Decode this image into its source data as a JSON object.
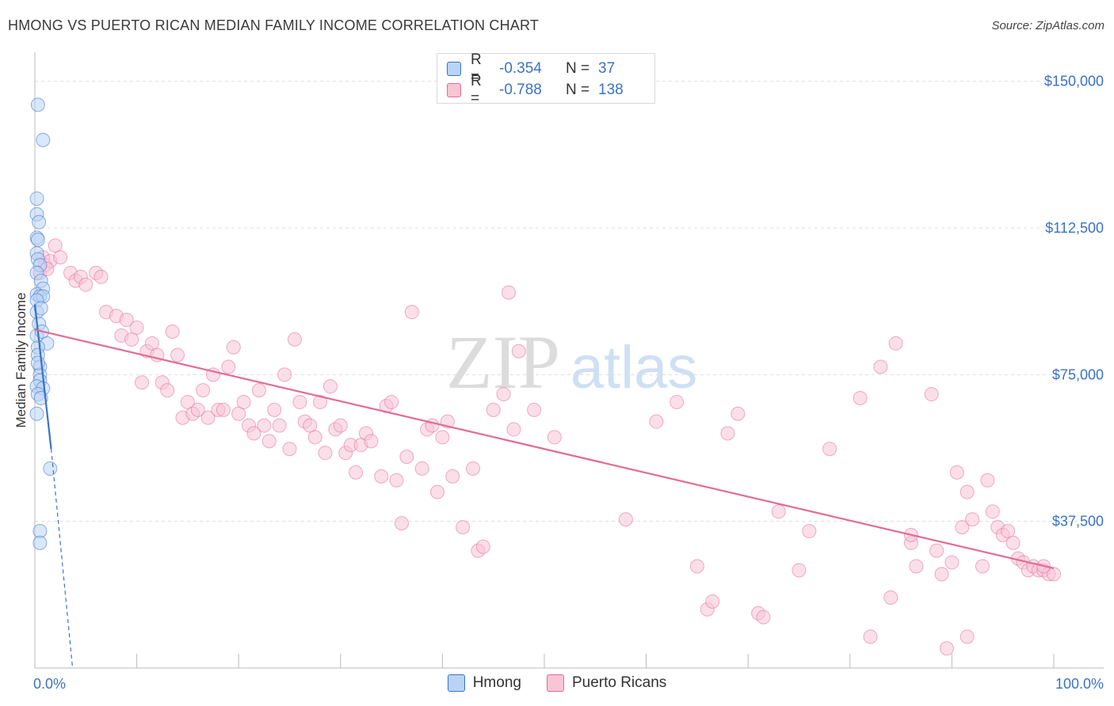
{
  "title": "HMONG VS PUERTO RICAN MEDIAN FAMILY INCOME CORRELATION CHART",
  "source": "Source: ZipAtlas.com",
  "watermark": {
    "zip": "ZIP",
    "atlas": "atlas"
  },
  "legend": {
    "r_label": "R =",
    "n_label": "N =",
    "series": [
      {
        "name": "Hmong",
        "r": "-0.354",
        "n": "37",
        "color": "#3b73c4",
        "fill": "#b9d4f5"
      },
      {
        "name": "Puerto Ricans",
        "r": "-0.788",
        "n": "138",
        "color": "#e36b96",
        "fill": "#f8c5d5"
      }
    ]
  },
  "chart_data": {
    "type": "scatter",
    "ylabel": "Median Family Income",
    "xlabel": "",
    "xlim": [
      0,
      100
    ],
    "ylim": [
      0,
      155000
    ],
    "y_ticks": [
      {
        "value": 37500,
        "label": "$37,500"
      },
      {
        "value": 75000,
        "label": "$75,000"
      },
      {
        "value": 112500,
        "label": "$112,500"
      },
      {
        "value": 150000,
        "label": "$150,000"
      }
    ],
    "x_tick_labels": {
      "min": "0.0%",
      "max": "100.0%"
    },
    "series": [
      {
        "name": "Hmong",
        "color": "#3b73c4",
        "fill": "#b9d4f5",
        "trend": {
          "x0": 0,
          "y0": 93000,
          "x1": 1.6,
          "y1": 56000,
          "dashed_to_x": 3.7,
          "dashed_to_y": 0
        },
        "points": [
          [
            0.3,
            144000
          ],
          [
            0.8,
            135000
          ],
          [
            0.2,
            120000
          ],
          [
            0.2,
            116000
          ],
          [
            0.4,
            114000
          ],
          [
            0.2,
            110000
          ],
          [
            0.3,
            109500
          ],
          [
            0.2,
            106000
          ],
          [
            0.3,
            104500
          ],
          [
            0.5,
            103000
          ],
          [
            0.2,
            101000
          ],
          [
            0.6,
            99000
          ],
          [
            0.8,
            97000
          ],
          [
            0.2,
            95500
          ],
          [
            0.5,
            95000
          ],
          [
            0.8,
            95000
          ],
          [
            0.2,
            94000
          ],
          [
            0.2,
            91000
          ],
          [
            1.2,
            83000
          ],
          [
            0.3,
            82000
          ],
          [
            0.3,
            80000
          ],
          [
            0.5,
            77000
          ],
          [
            0.5,
            75000
          ],
          [
            0.5,
            73500
          ],
          [
            0.2,
            72000
          ],
          [
            0.8,
            71500
          ],
          [
            0.3,
            70000
          ],
          [
            0.6,
            69000
          ],
          [
            0.2,
            65000
          ],
          [
            1.5,
            51000
          ],
          [
            0.5,
            35000
          ],
          [
            0.5,
            32000
          ],
          [
            0.2,
            85000
          ],
          [
            0.4,
            88000
          ],
          [
            0.7,
            86000
          ],
          [
            0.3,
            78000
          ],
          [
            0.6,
            92000
          ]
        ]
      },
      {
        "name": "Puerto Ricans",
        "color": "#e36b96",
        "fill": "#f8c5d5",
        "trend": {
          "x0": 0,
          "y0": 86500,
          "x1": 100,
          "y1": 25500
        },
        "points": [
          [
            0.5,
            101000
          ],
          [
            0.8,
            105000
          ],
          [
            1.0,
            103000
          ],
          [
            1.5,
            104000
          ],
          [
            2.0,
            108000
          ],
          [
            1.2,
            102000
          ],
          [
            2.5,
            105000
          ],
          [
            3.5,
            101000
          ],
          [
            4.0,
            99000
          ],
          [
            4.5,
            100000
          ],
          [
            5.0,
            98000
          ],
          [
            6.0,
            101000
          ],
          [
            6.5,
            100000
          ],
          [
            7.0,
            91000
          ],
          [
            8.0,
            90000
          ],
          [
            8.5,
            85000
          ],
          [
            9.0,
            89000
          ],
          [
            9.5,
            84000
          ],
          [
            10,
            87000
          ],
          [
            10.5,
            73000
          ],
          [
            11,
            81000
          ],
          [
            11.5,
            83000
          ],
          [
            12,
            80000
          ],
          [
            12.5,
            73000
          ],
          [
            13,
            71000
          ],
          [
            13.5,
            86000
          ],
          [
            14,
            80000
          ],
          [
            14.5,
            64000
          ],
          [
            15,
            68000
          ],
          [
            15.5,
            65000
          ],
          [
            16,
            66000
          ],
          [
            16.5,
            71000
          ],
          [
            17,
            64000
          ],
          [
            17.5,
            75000
          ],
          [
            18,
            66000
          ],
          [
            18.5,
            66000
          ],
          [
            19,
            77000
          ],
          [
            19.5,
            82000
          ],
          [
            20,
            65000
          ],
          [
            20.5,
            68000
          ],
          [
            21,
            62000
          ],
          [
            21.5,
            60000
          ],
          [
            22,
            71000
          ],
          [
            22.5,
            62000
          ],
          [
            23,
            58000
          ],
          [
            23.5,
            66000
          ],
          [
            24,
            62000
          ],
          [
            24.5,
            75000
          ],
          [
            25,
            56000
          ],
          [
            25.5,
            84000
          ],
          [
            26,
            68000
          ],
          [
            26.5,
            63000
          ],
          [
            27,
            62000
          ],
          [
            27.5,
            59000
          ],
          [
            28,
            68000
          ],
          [
            28.5,
            55000
          ],
          [
            29,
            72000
          ],
          [
            29.5,
            61000
          ],
          [
            30,
            62000
          ],
          [
            30.5,
            55000
          ],
          [
            31,
            57000
          ],
          [
            31.5,
            50000
          ],
          [
            32,
            57000
          ],
          [
            32.5,
            60000
          ],
          [
            33,
            58000
          ],
          [
            34,
            49000
          ],
          [
            34.5,
            67000
          ],
          [
            35,
            68000
          ],
          [
            35.5,
            48000
          ],
          [
            36,
            37000
          ],
          [
            36.5,
            54000
          ],
          [
            37,
            91000
          ],
          [
            38,
            51000
          ],
          [
            38.5,
            61000
          ],
          [
            39,
            62000
          ],
          [
            39.5,
            45000
          ],
          [
            40,
            59000
          ],
          [
            40.5,
            63000
          ],
          [
            41,
            49000
          ],
          [
            42,
            36000
          ],
          [
            43,
            51000
          ],
          [
            43.5,
            30000
          ],
          [
            44,
            31000
          ],
          [
            45,
            66000
          ],
          [
            46,
            70000
          ],
          [
            46.5,
            96000
          ],
          [
            47,
            61000
          ],
          [
            47.5,
            81000
          ],
          [
            49,
            66000
          ],
          [
            51,
            59000
          ],
          [
            58,
            38000
          ],
          [
            61,
            63000
          ],
          [
            63,
            68000
          ],
          [
            65,
            26000
          ],
          [
            66,
            15000
          ],
          [
            66.5,
            17000
          ],
          [
            68,
            60000
          ],
          [
            69,
            65000
          ],
          [
            71,
            14000
          ],
          [
            71.5,
            13000
          ],
          [
            73,
            40000
          ],
          [
            75,
            25000
          ],
          [
            76,
            35000
          ],
          [
            78,
            56000
          ],
          [
            81,
            69000
          ],
          [
            82,
            8000
          ],
          [
            83,
            77000
          ],
          [
            84,
            18000
          ],
          [
            84.5,
            83000
          ],
          [
            86,
            32000
          ],
          [
            86,
            34000
          ],
          [
            86.5,
            26000
          ],
          [
            88,
            70000
          ],
          [
            88.5,
            30000
          ],
          [
            89,
            24000
          ],
          [
            89.5,
            5000
          ],
          [
            90,
            27000
          ],
          [
            90.5,
            50000
          ],
          [
            91,
            36000
          ],
          [
            91.5,
            45000
          ],
          [
            91.5,
            8000
          ],
          [
            92,
            38000
          ],
          [
            93,
            26000
          ],
          [
            93.5,
            48000
          ],
          [
            94,
            40000
          ],
          [
            94.5,
            36000
          ],
          [
            95,
            34000
          ],
          [
            95.5,
            35000
          ],
          [
            96,
            32000
          ],
          [
            96.5,
            28000
          ],
          [
            97,
            27000
          ],
          [
            97.5,
            25000
          ],
          [
            98,
            26000
          ],
          [
            98.5,
            25000
          ],
          [
            99,
            25000
          ],
          [
            99.5,
            24000
          ],
          [
            100,
            24000
          ],
          [
            99,
            26000
          ]
        ]
      }
    ]
  }
}
